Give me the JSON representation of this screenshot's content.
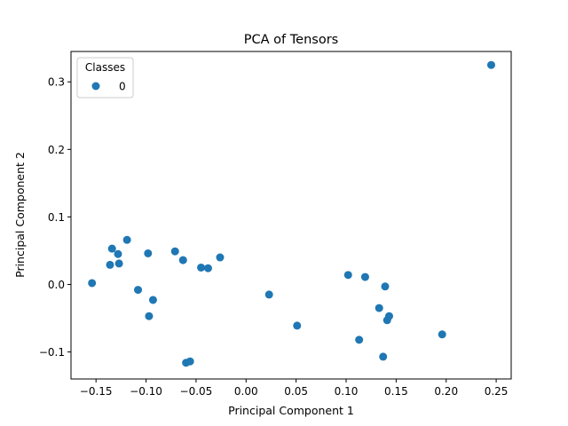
{
  "chart_data": {
    "type": "scatter",
    "title": "PCA of Tensors",
    "xlabel": "Principal Component 1",
    "ylabel": "Principal Component 2",
    "xlim": [
      -0.175,
      0.265
    ],
    "ylim": [
      -0.14,
      0.345
    ],
    "xticks": [
      -0.15,
      -0.1,
      -0.05,
      0.0,
      0.05,
      0.1,
      0.15,
      0.2,
      0.25
    ],
    "xtick_labels": [
      "−0.15",
      "−0.10",
      "−0.05",
      "0.00",
      "0.05",
      "0.10",
      "0.15",
      "0.20",
      "0.25"
    ],
    "yticks": [
      -0.1,
      0.0,
      0.1,
      0.2,
      0.3
    ],
    "ytick_labels": [
      "−0.1",
      "0.0",
      "0.1",
      "0.2",
      "0.3"
    ],
    "grid": false,
    "legend": {
      "title": "Classes",
      "placement": "top-left",
      "entries": [
        "0"
      ]
    },
    "series": [
      {
        "name": "0",
        "color": "#1f77b4",
        "points": [
          [
            -0.154,
            0.002
          ],
          [
            -0.136,
            0.029
          ],
          [
            -0.134,
            0.053
          ],
          [
            -0.128,
            0.045
          ],
          [
            -0.127,
            0.031
          ],
          [
            -0.119,
            0.066
          ],
          [
            -0.108,
            -0.008
          ],
          [
            -0.098,
            0.046
          ],
          [
            -0.097,
            -0.047
          ],
          [
            -0.093,
            -0.023
          ],
          [
            -0.071,
            0.049
          ],
          [
            -0.063,
            0.036
          ],
          [
            -0.06,
            -0.116
          ],
          [
            -0.056,
            -0.114
          ],
          [
            -0.045,
            0.025
          ],
          [
            -0.038,
            0.024
          ],
          [
            -0.026,
            0.04
          ],
          [
            0.023,
            -0.015
          ],
          [
            0.051,
            -0.061
          ],
          [
            0.102,
            0.014
          ],
          [
            0.113,
            -0.082
          ],
          [
            0.119,
            0.011
          ],
          [
            0.133,
            -0.035
          ],
          [
            0.137,
            -0.107
          ],
          [
            0.139,
            -0.003
          ],
          [
            0.141,
            -0.053
          ],
          [
            0.143,
            -0.047
          ],
          [
            0.196,
            -0.074
          ],
          [
            0.245,
            0.325
          ]
        ]
      }
    ]
  }
}
